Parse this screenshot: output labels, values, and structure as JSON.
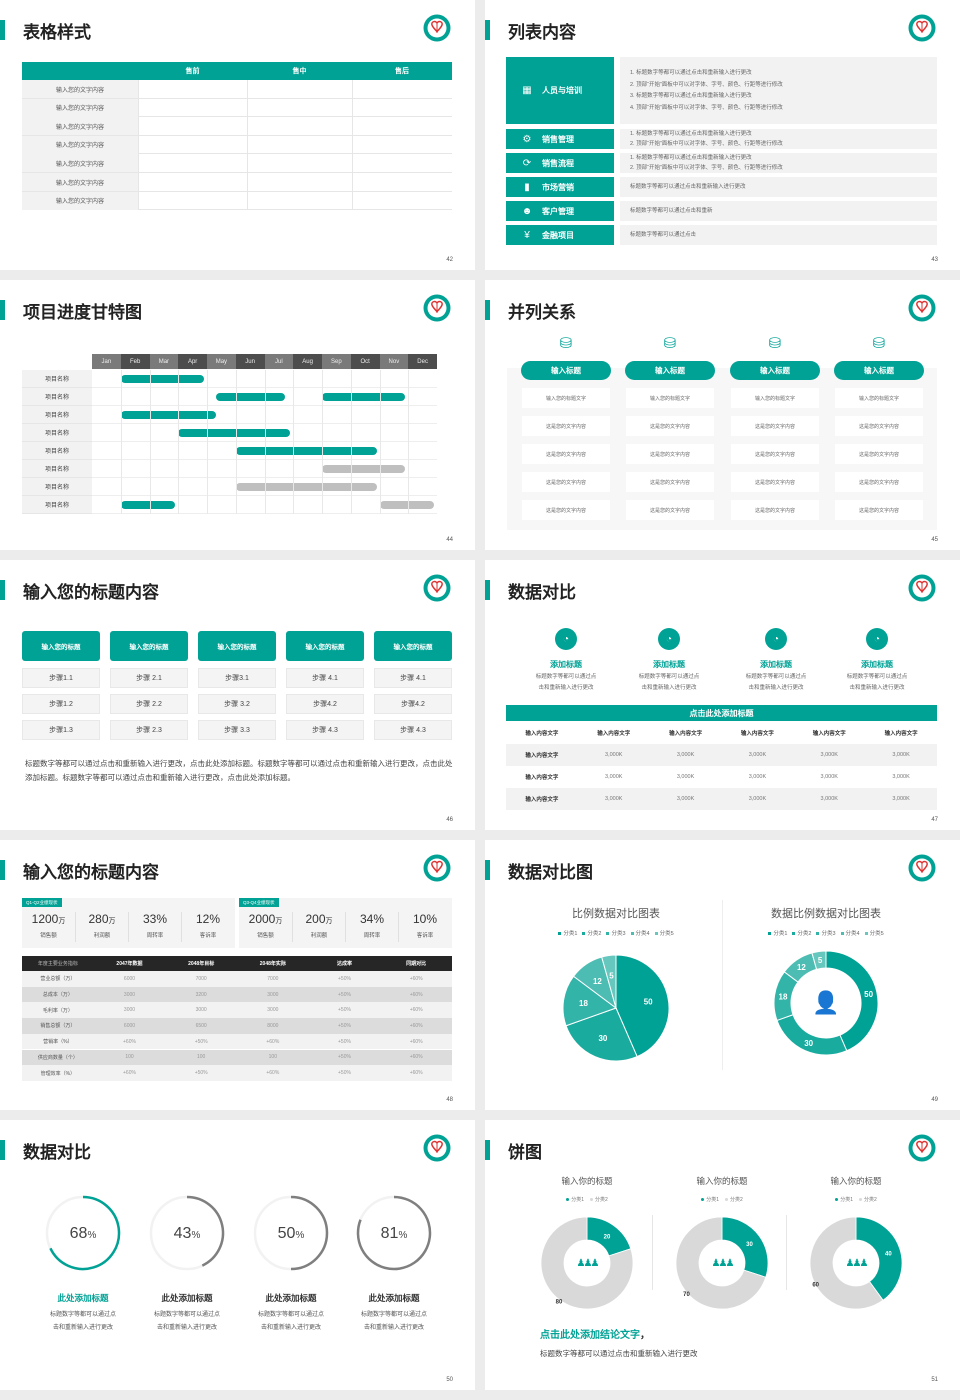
{
  "colors": {
    "accent": "#00a295",
    "gray_ring": "#7f7f7f",
    "light_gray": "#d9d9d9",
    "dark_header": "#262626"
  },
  "slides": [
    {
      "title": "表格样式",
      "page": "42",
      "table": {
        "headers": [
          "",
          "售前",
          "售中",
          "售后"
        ],
        "rows": [
          "输入您的文字内容",
          "输入您的文字内容",
          "输入您的文字内容",
          "输入您的文字内容",
          "输入您的文字内容",
          "输入您的文字内容",
          "输入您的文字内容"
        ]
      }
    },
    {
      "title": "列表内容",
      "page": "43",
      "items": [
        {
          "icon": "training-icon",
          "label": "人员与培训",
          "lines": [
            "1.  标题数字等都可以通过点击和重新输入进行更改",
            "2.  顶部“开始”面板中可以对字体、字号、颜色、行距等进行修改",
            "3.  标题数字等都可以通过点击和重新输入进行更改",
            "4.  顶部“开始”面板中可以对字体、字号、颜色、行距等进行修改"
          ]
        },
        {
          "icon": "user-gear-icon",
          "label": "销售管理",
          "lines": [
            "1.  标题数字等都可以通过点击和重新输入进行更改",
            "2.  顶部“开始”面板中可以对字体、字号、颜色、行距等进行修改"
          ]
        },
        {
          "icon": "cycle-icon",
          "label": "销售流程",
          "lines": [
            "1.  标题数字等都可以通过点击和重新输入进行更改",
            "2.  顶部“开始”面板中可以对字体、字号、颜色、行距等进行修改"
          ]
        },
        {
          "icon": "bar-chart-icon",
          "label": "市场营销",
          "lines": [
            "标题数字等都可以通过点击和重新输入进行更改"
          ]
        },
        {
          "icon": "users-icon",
          "label": "客户管理",
          "lines": [
            "标题数字等都可以通过点击和重新"
          ]
        },
        {
          "icon": "money-hand-icon",
          "label": "金融项目",
          "lines": [
            "标题数字等都可以通过点击"
          ]
        }
      ]
    },
    {
      "title": "项目进度甘特图",
      "page": "44",
      "months": [
        "Jan",
        "Feb",
        "Mar",
        "Apr",
        "May",
        "Jun",
        "Jul",
        "Aug",
        "Sep",
        "Oct",
        "Nov",
        "Dec"
      ],
      "rows": [
        {
          "label": "项目名称",
          "bars": [
            {
              "start": 1.0,
              "end": 3.9,
              "status": "active"
            }
          ]
        },
        {
          "label": "项目名称",
          "bars": [
            {
              "start": 4.3,
              "end": 6.7,
              "status": "active"
            },
            {
              "start": 8.0,
              "end": 10.9,
              "status": "active"
            }
          ]
        },
        {
          "label": "项目名称",
          "bars": [
            {
              "start": 1.0,
              "end": 4.3,
              "status": "active"
            }
          ]
        },
        {
          "label": "项目名称",
          "bars": [
            {
              "start": 3.0,
              "end": 6.9,
              "status": "active"
            }
          ]
        },
        {
          "label": "项目名称",
          "bars": [
            {
              "start": 5.0,
              "end": 9.9,
              "status": "active"
            }
          ]
        },
        {
          "label": "项目名称",
          "bars": [
            {
              "start": 8.0,
              "end": 10.9,
              "status": "pending"
            }
          ]
        },
        {
          "label": "项目名称",
          "bars": [
            {
              "start": 5.0,
              "end": 9.9,
              "status": "pending"
            }
          ]
        },
        {
          "label": "项目名称",
          "bars": [
            {
              "start": 1.0,
              "end": 2.9,
              "status": "active"
            },
            {
              "start": 10.0,
              "end": 11.9,
              "status": "pending"
            }
          ]
        }
      ]
    },
    {
      "title": "并列关系",
      "page": "45",
      "columns": [
        {
          "header": "输入标题",
          "cells": [
            "输入您的标题文字",
            "这是您的文字内容",
            "这是您的文字内容",
            "这是您的文字内容",
            "这是您的文字内容"
          ]
        },
        {
          "header": "输入标题",
          "cells": [
            "输入您的标题文字",
            "这是您的文字内容",
            "这是您的文字内容",
            "这是您的文字内容",
            "这是您的文字内容"
          ]
        },
        {
          "header": "输入标题",
          "cells": [
            "输入您的标题文字",
            "这是您的文字内容",
            "这是您的文字内容",
            "这是您的文字内容",
            "这是您的文字内容"
          ]
        },
        {
          "header": "输入标题",
          "cells": [
            "输入您的标题文字",
            "这是您的文字内容",
            "这是您的文字内容",
            "这是您的文字内容",
            "这是您的文字内容"
          ]
        }
      ]
    },
    {
      "title": "输入您的标题内容",
      "page": "46",
      "columns": [
        {
          "header": "输入您的标题",
          "steps": [
            "步骤1.1",
            "步骤1.2",
            "步骤1.3"
          ]
        },
        {
          "header": "输入您的标题",
          "steps": [
            "步骤 2.1",
            "步骤 2.2",
            "步骤 2.3"
          ]
        },
        {
          "header": "输入您的标题",
          "steps": [
            "步骤3.1",
            "步骤 3.2",
            "步骤 3.3"
          ]
        },
        {
          "header": "输入您的标题",
          "steps": [
            "步骤 4.1",
            "步骤4.2",
            "步骤 4.3"
          ]
        },
        {
          "header": "输入您的标题",
          "steps": [
            "步骤 4.1",
            "步骤4.2",
            "步骤 4.3"
          ]
        }
      ],
      "paragraph": "标题数字等都可以通过点击和重新输入进行更改，点击此处添加标题。标题数字等都可以通过点击和重新输入进行更改，点击此处添加标题。标题数字等都可以通过点击和重新输入进行更改，点击此处添加标题。"
    },
    {
      "title": "数据对比",
      "page": "47",
      "features": [
        {
          "title": "添加标题",
          "desc": [
            "标题数字等都可以通过点",
            "击和重新输入进行更改"
          ]
        },
        {
          "title": "添加标题",
          "desc": [
            "标题数字等都可以通过点",
            "击和重新输入进行更改"
          ]
        },
        {
          "title": "添加标题",
          "desc": [
            "标题数字等都可以通过点",
            "击和重新输入进行更改"
          ]
        },
        {
          "title": "添加标题",
          "desc": [
            "标题数字等都可以通过点",
            "击和重新输入进行更改"
          ]
        }
      ],
      "bar_title": "点击此处添加标题",
      "table": {
        "headers": [
          "输入内容文字",
          "输入内容文字",
          "输入内容文字",
          "输入内容文字",
          "输入内容文字",
          "输入内容文字"
        ],
        "rows": [
          [
            "输入内容文字",
            "3,000K",
            "3,000K",
            "3,000K",
            "3,000K",
            "3,000K"
          ],
          [
            "输入内容文字",
            "3,000K",
            "3,000K",
            "3,000K",
            "3,000K",
            "3,000K"
          ],
          [
            "输入内容文字",
            "3,000K",
            "3,000K",
            "3,000K",
            "3,000K",
            "3,000K"
          ]
        ]
      }
    },
    {
      "title": "输入您的标题内容",
      "page": "48",
      "panels": [
        {
          "tag": "Q1-Q2业绩现状",
          "kpis": [
            {
              "value": "1200",
              "unit": "万",
              "label": "销售额"
            },
            {
              "value": "280",
              "unit": "万",
              "label": "利润额"
            },
            {
              "value": "33%",
              "unit": "",
              "label": "周转率"
            },
            {
              "value": "12%",
              "unit": "",
              "label": "客诉率"
            }
          ]
        },
        {
          "tag": "Q3-Q4业绩现状",
          "kpis": [
            {
              "value": "2000",
              "unit": "万",
              "label": "销售额"
            },
            {
              "value": "200",
              "unit": "万",
              "label": "利润额"
            },
            {
              "value": "34%",
              "unit": "",
              "label": "周转率"
            },
            {
              "value": "10%",
              "unit": "",
              "label": "客诉率"
            }
          ]
        }
      ],
      "table": {
        "headers": [
          "年度主要业务指标",
          "2047年数据",
          "2048年目标",
          "2048年实际",
          "达成率",
          "同期对比"
        ],
        "rows": [
          [
            "营业总额（万）",
            "6000",
            "7000",
            "7000",
            "+50%",
            "+60%"
          ],
          [
            "总成本（万）",
            "3000",
            "3200",
            "3000",
            "+50%",
            "+60%"
          ],
          [
            "毛利率（万）",
            "3000",
            "3000",
            "3000",
            "+50%",
            "+60%"
          ],
          [
            "销售总额（万）",
            "6000",
            "6500",
            "8000",
            "+50%",
            "+60%"
          ],
          [
            "营销率（%）",
            "+60%",
            "+50%",
            "+60%",
            "+50%",
            "+60%"
          ],
          [
            "供应商数量（个）",
            "100",
            "100",
            "100",
            "+50%",
            "+60%"
          ],
          [
            "管理效率（%）",
            "+60%",
            "+50%",
            "+60%",
            "+50%",
            "+60%"
          ]
        ]
      }
    },
    {
      "title": "数据对比图",
      "page": "49"
    },
    {
      "title": "数据对比",
      "page": "50",
      "items": [
        {
          "title": "此处添加标题",
          "desc": [
            "标题数字等都可以通过点",
            "击和重新输入进行更改"
          ],
          "highlight": true
        },
        {
          "title": "此处添加标题",
          "desc": [
            "标题数字等都可以通过点",
            "击和重新输入进行更改"
          ],
          "highlight": false
        },
        {
          "title": "此处添加标题",
          "desc": [
            "标题数字等都可以通过点",
            "击和重新输入进行更改"
          ],
          "highlight": false
        },
        {
          "title": "此处添加标题",
          "desc": [
            "标题数字等都可以通过点",
            "击和重新输入进行更改"
          ],
          "highlight": false
        }
      ]
    },
    {
      "title": "饼图",
      "page": "51",
      "conclusion": "点击此处添加结论文字",
      "conclusion_comma": "，",
      "desc": "标题数字等都可以通过点击和重新输入进行更改"
    }
  ],
  "chart_data": [
    {
      "type": "pie",
      "title": "比例数据对比图表",
      "legend": "top",
      "categories": [
        "分类1",
        "分类2",
        "分类3",
        "分类4",
        "分类5"
      ],
      "values": [
        50,
        30,
        18,
        12,
        5
      ]
    },
    {
      "type": "pie",
      "variant": "donut",
      "title": "数据比例数据对比图表",
      "legend": "top",
      "categories": [
        "分类1",
        "分类2",
        "分类3",
        "分类4",
        "分类5"
      ],
      "values": [
        50,
        30,
        18,
        12,
        5
      ],
      "center_icon": "customer-service-icon"
    },
    {
      "type": "pie",
      "variant": "donut",
      "title": "输入你的标题",
      "legend": "top",
      "categories": [
        "分类1",
        "分类2"
      ],
      "values": [
        20,
        80
      ],
      "center_icon": "team-icon"
    },
    {
      "type": "pie",
      "variant": "donut",
      "title": "输入你的标题",
      "legend": "top",
      "categories": [
        "分类1",
        "分类2"
      ],
      "values": [
        30,
        70
      ],
      "center_icon": "team-icon"
    },
    {
      "type": "pie",
      "variant": "donut",
      "title": "输入你的标题",
      "legend": "top",
      "categories": [
        "分类1",
        "分类2"
      ],
      "values": [
        40,
        60
      ],
      "center_icon": "team-icon"
    },
    {
      "type": "gauge",
      "values": [
        68,
        43,
        50,
        81
      ],
      "unit": "%"
    }
  ]
}
